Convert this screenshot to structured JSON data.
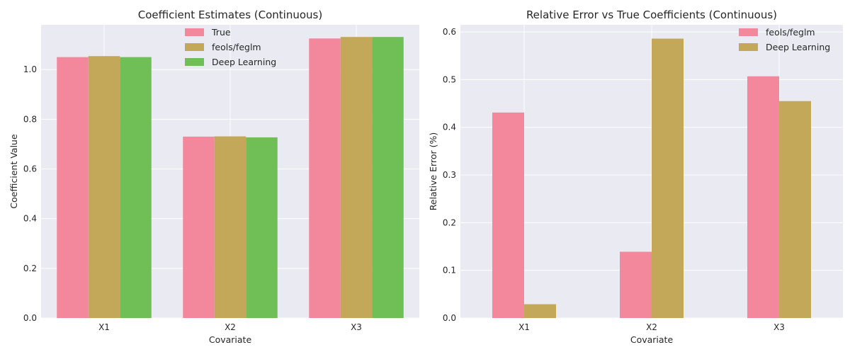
{
  "charts": [
    {
      "type": "bar",
      "title": "Coefficient Estimates (Continuous)",
      "xlabel": "Covariate",
      "ylabel": "Coefficient Value",
      "categories": [
        "X1",
        "X2",
        "X3"
      ],
      "ylim": [
        0,
        1.18
      ],
      "yticks": [
        0.0,
        0.2,
        0.4,
        0.6,
        0.8,
        1.0
      ],
      "ytick_labels": [
        "0.0",
        "0.2",
        "0.4",
        "0.6",
        "0.8",
        "1.0"
      ],
      "series": [
        {
          "name": "True",
          "color": "#f3889c",
          "values": [
            1.05,
            0.73,
            1.125
          ]
        },
        {
          "name": "feols/feglm",
          "color": "#c4a85a",
          "values": [
            1.054,
            0.731,
            1.131
          ]
        },
        {
          "name": "Deep Learning",
          "color": "#70be56",
          "values": [
            1.05,
            0.727,
            1.131
          ]
        }
      ],
      "legend": "top-center",
      "grid": true
    },
    {
      "type": "bar",
      "title": "Relative Error vs True Coefficients (Continuous)",
      "xlabel": "Covariate",
      "ylabel": "Relative Error (%)",
      "categories": [
        "X1",
        "X2",
        "X3"
      ],
      "ylim": [
        0,
        0.615
      ],
      "yticks": [
        0.0,
        0.1,
        0.2,
        0.3,
        0.4,
        0.5,
        0.6
      ],
      "ytick_labels": [
        "0.0",
        "0.1",
        "0.2",
        "0.3",
        "0.4",
        "0.5",
        "0.6"
      ],
      "series": [
        {
          "name": "feols/feglm",
          "color": "#f3889c",
          "values": [
            0.431,
            0.139,
            0.507
          ]
        },
        {
          "name": "Deep Learning",
          "color": "#c4a85a",
          "values": [
            0.029,
            0.586,
            0.455
          ]
        }
      ],
      "legend": "top-right",
      "grid": true
    }
  ],
  "style": {
    "plot_bg": "#eaeaf2",
    "grid_color": "#ffffff"
  }
}
